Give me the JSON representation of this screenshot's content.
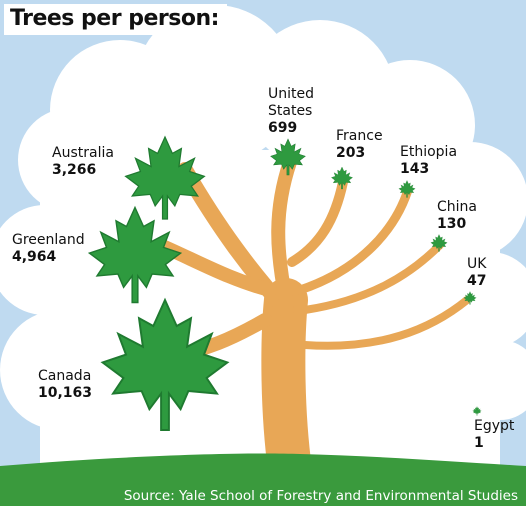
{
  "title": "Trees per person:",
  "source": "Source: Yale School of Forestry and Environmental Studies",
  "colors": {
    "sky": "#bfdaf0",
    "cloud": "#ffffff",
    "trunk": "#e8a756",
    "leaf": "#2e9a3f",
    "leaf_dark": "#1f7a30",
    "ground": "#3a9a3d"
  },
  "icons": [
    "maple-leaf-icon"
  ],
  "chart_data": {
    "type": "pictorial",
    "title": "Trees per person:",
    "unit": "trees per person",
    "categories": [
      "Canada",
      "Greenland",
      "Australia",
      "United States",
      "France",
      "Ethiopia",
      "China",
      "UK",
      "Egypt"
    ],
    "values": [
      10163,
      4964,
      3266,
      699,
      203,
      143,
      130,
      47,
      1
    ],
    "labels": [
      {
        "name": "Canada",
        "value_text": "10,163"
      },
      {
        "name": "Greenland",
        "value_text": "4,964"
      },
      {
        "name": "Australia",
        "value_text": "3,266"
      },
      {
        "name": "United States",
        "value_text": "699"
      },
      {
        "name": "France",
        "value_text": "203"
      },
      {
        "name": "Ethiopia",
        "value_text": "143"
      },
      {
        "name": "China",
        "value_text": "130"
      },
      {
        "name": "UK",
        "value_text": "47"
      },
      {
        "name": "Egypt",
        "value_text": "1"
      }
    ]
  }
}
